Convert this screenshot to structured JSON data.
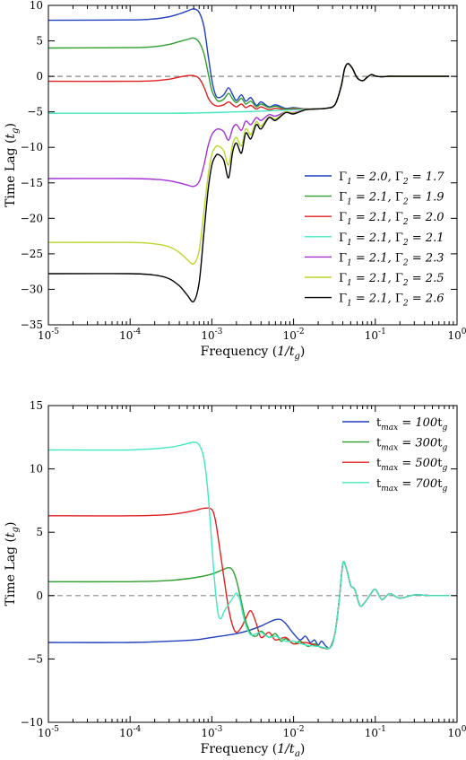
{
  "chart_data": [
    {
      "type": "line",
      "xlabel": "Frequency (1/t_g)",
      "ylabel": "Time Lag (t_g)",
      "xscale": "log",
      "xlim": [
        1e-05,
        1
      ],
      "ylim": [
        -35,
        10
      ],
      "xticks": [
        1e-05,
        0.0001,
        0.001,
        0.01,
        0.1,
        1
      ],
      "xtick_labels": [
        "10-5",
        "10-4",
        "10-3",
        "10-2",
        "10-1",
        "100"
      ],
      "yticks": [
        -35,
        -30,
        -25,
        -20,
        -15,
        -10,
        -5,
        0,
        5,
        10
      ],
      "ytick_labels": [
        "−35",
        "−30",
        "−25",
        "−20",
        "−15",
        "−10",
        "−5",
        "0",
        "5",
        "10"
      ],
      "reference_line": {
        "y": 0,
        "style": "dashed",
        "color": "#888888"
      },
      "legend": {
        "placement": "lower-right"
      },
      "common_tail": {
        "x": [
          0.018,
          0.025,
          0.032,
          0.038,
          0.042,
          0.046,
          0.052,
          0.06,
          0.07,
          0.08,
          0.09,
          0.1,
          0.12,
          0.15,
          0.2,
          0.3,
          0.5,
          0.8
        ],
        "y": [
          -4.6,
          -4.5,
          -4.0,
          -1.5,
          1.0,
          1.8,
          1.2,
          -0.2,
          -0.6,
          -0.1,
          0.25,
          0.05,
          -0.05,
          0.02,
          0,
          0,
          0,
          0
        ]
      },
      "series": [
        {
          "name": "Γ1 = 2.0, Γ2 = 1.7",
          "color": "#1f3fbf",
          "x": [
            1e-05,
            0.0001,
            0.0002,
            0.0003,
            0.0004,
            0.0005,
            0.0006,
            0.0007,
            0.0008,
            0.0009,
            0.001,
            0.0011,
            0.0012,
            0.0014,
            0.0016,
            0.0018,
            0.002,
            0.0023,
            0.0026,
            0.003,
            0.0035,
            0.004,
            0.005,
            0.006,
            0.008,
            0.01,
            0.014,
            0.018
          ],
          "y": [
            7.9,
            7.95,
            8.1,
            8.4,
            8.8,
            9.2,
            9.5,
            9.0,
            7.0,
            3.0,
            -0.5,
            -2.5,
            -3.0,
            -2.6,
            -1.6,
            -2.6,
            -3.4,
            -2.6,
            -3.5,
            -3.0,
            -4.1,
            -3.6,
            -4.3,
            -4.0,
            -4.5,
            -4.4,
            -4.6,
            -4.6
          ]
        },
        {
          "name": "Γ1 = 2.1, Γ2 = 1.9",
          "color": "#2e9e2e",
          "x": [
            1e-05,
            0.0001,
            0.0002,
            0.0003,
            0.0004,
            0.0005,
            0.0006,
            0.0007,
            0.0008,
            0.0009,
            0.001,
            0.0011,
            0.0012,
            0.0014,
            0.0016,
            0.0018,
            0.002,
            0.0023,
            0.0026,
            0.003,
            0.0035,
            0.004,
            0.005,
            0.006,
            0.008,
            0.01,
            0.014,
            0.018
          ],
          "y": [
            4.0,
            4.05,
            4.2,
            4.5,
            4.9,
            5.2,
            5.4,
            4.8,
            3.2,
            0.5,
            -2.0,
            -3.0,
            -3.5,
            -3.2,
            -2.4,
            -3.2,
            -3.7,
            -3.1,
            -3.9,
            -3.5,
            -4.3,
            -3.9,
            -4.4,
            -4.2,
            -4.6,
            -4.5,
            -4.6,
            -4.6
          ]
        },
        {
          "name": "Γ1 = 2.1, Γ2 = 2.0",
          "color": "#e02020",
          "x": [
            1e-05,
            0.0001,
            0.0002,
            0.0003,
            0.0004,
            0.0005,
            0.0006,
            0.0007,
            0.0008,
            0.0009,
            0.001,
            0.0011,
            0.0012,
            0.0014,
            0.0016,
            0.0018,
            0.002,
            0.0023,
            0.0026,
            0.003,
            0.0035,
            0.004,
            0.005,
            0.006,
            0.008,
            0.01,
            0.014,
            0.018
          ],
          "y": [
            -0.7,
            -0.7,
            -0.6,
            -0.4,
            -0.1,
            0.1,
            0.1,
            -0.3,
            -1.5,
            -3.0,
            -3.8,
            -4.1,
            -4.2,
            -4.0,
            -3.6,
            -4.0,
            -4.3,
            -3.9,
            -4.4,
            -4.1,
            -4.6,
            -4.3,
            -4.7,
            -4.5,
            -4.7,
            -4.6,
            -4.6,
            -4.6
          ]
        },
        {
          "name": "Γ1 = 2.1, Γ2 = 2.1",
          "color": "#40e8c0",
          "x": [
            1e-05,
            0.0001,
            0.0003,
            0.0006,
            0.001,
            0.002,
            0.004,
            0.008,
            0.018
          ],
          "y": [
            -5.2,
            -5.2,
            -5.2,
            -5.15,
            -5.1,
            -5.0,
            -4.9,
            -4.75,
            -4.6
          ]
        },
        {
          "name": "Γ1 = 2.1, Γ2 = 2.3",
          "color": "#a530d8",
          "x": [
            1e-05,
            0.0001,
            0.0002,
            0.0003,
            0.0004,
            0.0005,
            0.0006,
            0.0007,
            0.0008,
            0.0009,
            0.001,
            0.0011,
            0.0012,
            0.0014,
            0.0016,
            0.0018,
            0.002,
            0.0023,
            0.0026,
            0.003,
            0.0035,
            0.004,
            0.005,
            0.006,
            0.008,
            0.01,
            0.014,
            0.018
          ],
          "y": [
            -14.4,
            -14.4,
            -14.5,
            -14.7,
            -15.0,
            -15.3,
            -15.5,
            -14.8,
            -12.5,
            -9.8,
            -8.2,
            -7.6,
            -7.4,
            -7.8,
            -9.0,
            -7.3,
            -6.8,
            -7.6,
            -6.3,
            -6.8,
            -5.8,
            -6.2,
            -5.4,
            -5.6,
            -5.0,
            -5.1,
            -4.7,
            -4.6
          ]
        },
        {
          "name": "Γ1 = 2.1, Γ2 = 2.5",
          "color": "#b8d82a",
          "x": [
            1e-05,
            0.0001,
            0.0002,
            0.0003,
            0.0004,
            0.0005,
            0.0006,
            0.0007,
            0.0008,
            0.0009,
            0.001,
            0.0011,
            0.0012,
            0.0014,
            0.0016,
            0.0018,
            0.002,
            0.0023,
            0.0026,
            0.003,
            0.0035,
            0.004,
            0.005,
            0.006,
            0.008,
            0.01,
            0.014,
            0.018
          ],
          "y": [
            -23.4,
            -23.4,
            -23.6,
            -24.0,
            -24.8,
            -25.8,
            -26.4,
            -24.5,
            -19.0,
            -14.0,
            -11.0,
            -10.0,
            -9.8,
            -10.5,
            -12.5,
            -9.5,
            -8.6,
            -9.8,
            -7.4,
            -8.2,
            -6.4,
            -7.0,
            -5.7,
            -6.0,
            -5.0,
            -5.2,
            -4.7,
            -4.6
          ]
        },
        {
          "name": "Γ1 = 2.1, Γ2 = 2.6",
          "color": "#000000",
          "x": [
            1e-05,
            0.0001,
            0.0002,
            0.0003,
            0.0004,
            0.0005,
            0.0006,
            0.0007,
            0.0008,
            0.0009,
            0.001,
            0.0011,
            0.0012,
            0.0014,
            0.0016,
            0.0018,
            0.002,
            0.0023,
            0.0026,
            0.003,
            0.0035,
            0.004,
            0.005,
            0.006,
            0.008,
            0.01,
            0.014,
            0.018
          ],
          "y": [
            -27.8,
            -27.8,
            -28.0,
            -28.5,
            -29.5,
            -30.8,
            -31.7,
            -29.0,
            -22.0,
            -16.0,
            -12.5,
            -11.3,
            -11.0,
            -11.8,
            -14.3,
            -10.6,
            -9.4,
            -10.8,
            -8.0,
            -8.8,
            -6.8,
            -7.4,
            -5.8,
            -6.2,
            -5.1,
            -5.3,
            -4.7,
            -4.6
          ]
        }
      ]
    },
    {
      "type": "line",
      "xlabel": "Frequency (1/t_g)",
      "ylabel": "Time Lag (t_g)",
      "xscale": "log",
      "xlim": [
        1e-05,
        1
      ],
      "ylim": [
        -10,
        15
      ],
      "xticks": [
        1e-05,
        0.0001,
        0.001,
        0.01,
        0.1,
        1
      ],
      "xtick_labels": [
        "10-5",
        "10-4",
        "10-3",
        "10-2",
        "10-1",
        "100"
      ],
      "yticks": [
        -10,
        -5,
        0,
        5,
        10,
        15
      ],
      "ytick_labels": [
        "−10",
        "−5",
        "0",
        "5",
        "10",
        "15"
      ],
      "reference_line": {
        "y": 0,
        "style": "dashed",
        "color": "#888888"
      },
      "legend": {
        "placement": "top-right"
      },
      "common_tail": {
        "x": [
          0.028,
          0.032,
          0.036,
          0.04,
          0.044,
          0.05,
          0.056,
          0.065,
          0.075,
          0.085,
          0.1,
          0.12,
          0.15,
          0.2,
          0.3,
          0.5,
          0.8
        ],
        "y": [
          -4.1,
          -3.0,
          -0.5,
          2.5,
          2.2,
          0.8,
          0.5,
          -0.8,
          -0.5,
          0.0,
          0.5,
          -0.3,
          0.15,
          -0.2,
          0.05,
          0,
          0
        ]
      },
      "series": [
        {
          "name": "tmax = 100tg",
          "color": "#1f3fbf",
          "x": [
            1e-05,
            0.0001,
            0.0003,
            0.0006,
            0.001,
            0.002,
            0.003,
            0.004,
            0.005,
            0.006,
            0.007,
            0.008,
            0.01,
            0.012,
            0.014,
            0.016,
            0.018,
            0.02,
            0.022,
            0.025,
            0.028
          ],
          "y": [
            -3.7,
            -3.7,
            -3.6,
            -3.5,
            -3.3,
            -3.0,
            -2.7,
            -2.4,
            -2.1,
            -1.9,
            -1.9,
            -2.2,
            -3.0,
            -3.5,
            -3.2,
            -3.7,
            -3.5,
            -3.9,
            -3.6,
            -4.0,
            -4.1
          ]
        },
        {
          "name": "tmax = 300tg",
          "color": "#2e9e2e",
          "x": [
            1e-05,
            0.0001,
            0.0003,
            0.0006,
            0.001,
            0.0013,
            0.0016,
            0.0018,
            0.002,
            0.0023,
            0.0026,
            0.003,
            0.0035,
            0.004,
            0.005,
            0.006,
            0.007,
            0.008,
            0.01,
            0.012,
            0.015,
            0.018,
            0.022,
            0.028
          ],
          "y": [
            1.1,
            1.1,
            1.2,
            1.4,
            1.7,
            2.0,
            2.2,
            2.0,
            1.2,
            -0.5,
            -2.0,
            -3.0,
            -3.2,
            -2.8,
            -3.3,
            -3.0,
            -3.6,
            -3.4,
            -3.8,
            -3.6,
            -4.0,
            -3.8,
            -4.1,
            -4.1
          ]
        },
        {
          "name": "tmax = 500tg",
          "color": "#e02020",
          "x": [
            1e-05,
            0.0001,
            0.0003,
            0.0006,
            0.0008,
            0.001,
            0.0011,
            0.0012,
            0.0014,
            0.0016,
            0.0018,
            0.002,
            0.0023,
            0.0026,
            0.003,
            0.0035,
            0.004,
            0.005,
            0.006,
            0.008,
            0.01,
            0.014,
            0.02,
            0.028
          ],
          "y": [
            6.3,
            6.3,
            6.4,
            6.7,
            6.9,
            6.8,
            6.0,
            4.5,
            1.5,
            -1.0,
            -2.4,
            -2.9,
            -2.5,
            -1.8,
            -1.2,
            -2.2,
            -3.3,
            -2.9,
            -3.5,
            -3.3,
            -3.8,
            -3.7,
            -4.0,
            -4.1
          ]
        },
        {
          "name": "tmax = 700tg",
          "color": "#40e8c0",
          "x": [
            1e-05,
            0.0001,
            0.0003,
            0.0005,
            0.0006,
            0.0007,
            0.0008,
            0.0009,
            0.001,
            0.0011,
            0.0012,
            0.0013,
            0.0014,
            0.0016,
            0.0018,
            0.002,
            0.0022,
            0.0024,
            0.0027,
            0.003,
            0.0035,
            0.004,
            0.005,
            0.006,
            0.008,
            0.01,
            0.014,
            0.02,
            0.028
          ],
          "y": [
            11.5,
            11.5,
            11.7,
            12.0,
            12.1,
            11.9,
            10.8,
            8.0,
            4.0,
            0.5,
            -1.5,
            -1.8,
            -1.3,
            -0.7,
            -0.2,
            0.2,
            -0.3,
            -1.5,
            -2.6,
            -3.1,
            -3.0,
            -2.9,
            -3.3,
            -3.2,
            -3.6,
            -3.6,
            -3.9,
            -4.0,
            -4.1
          ]
        }
      ]
    }
  ]
}
